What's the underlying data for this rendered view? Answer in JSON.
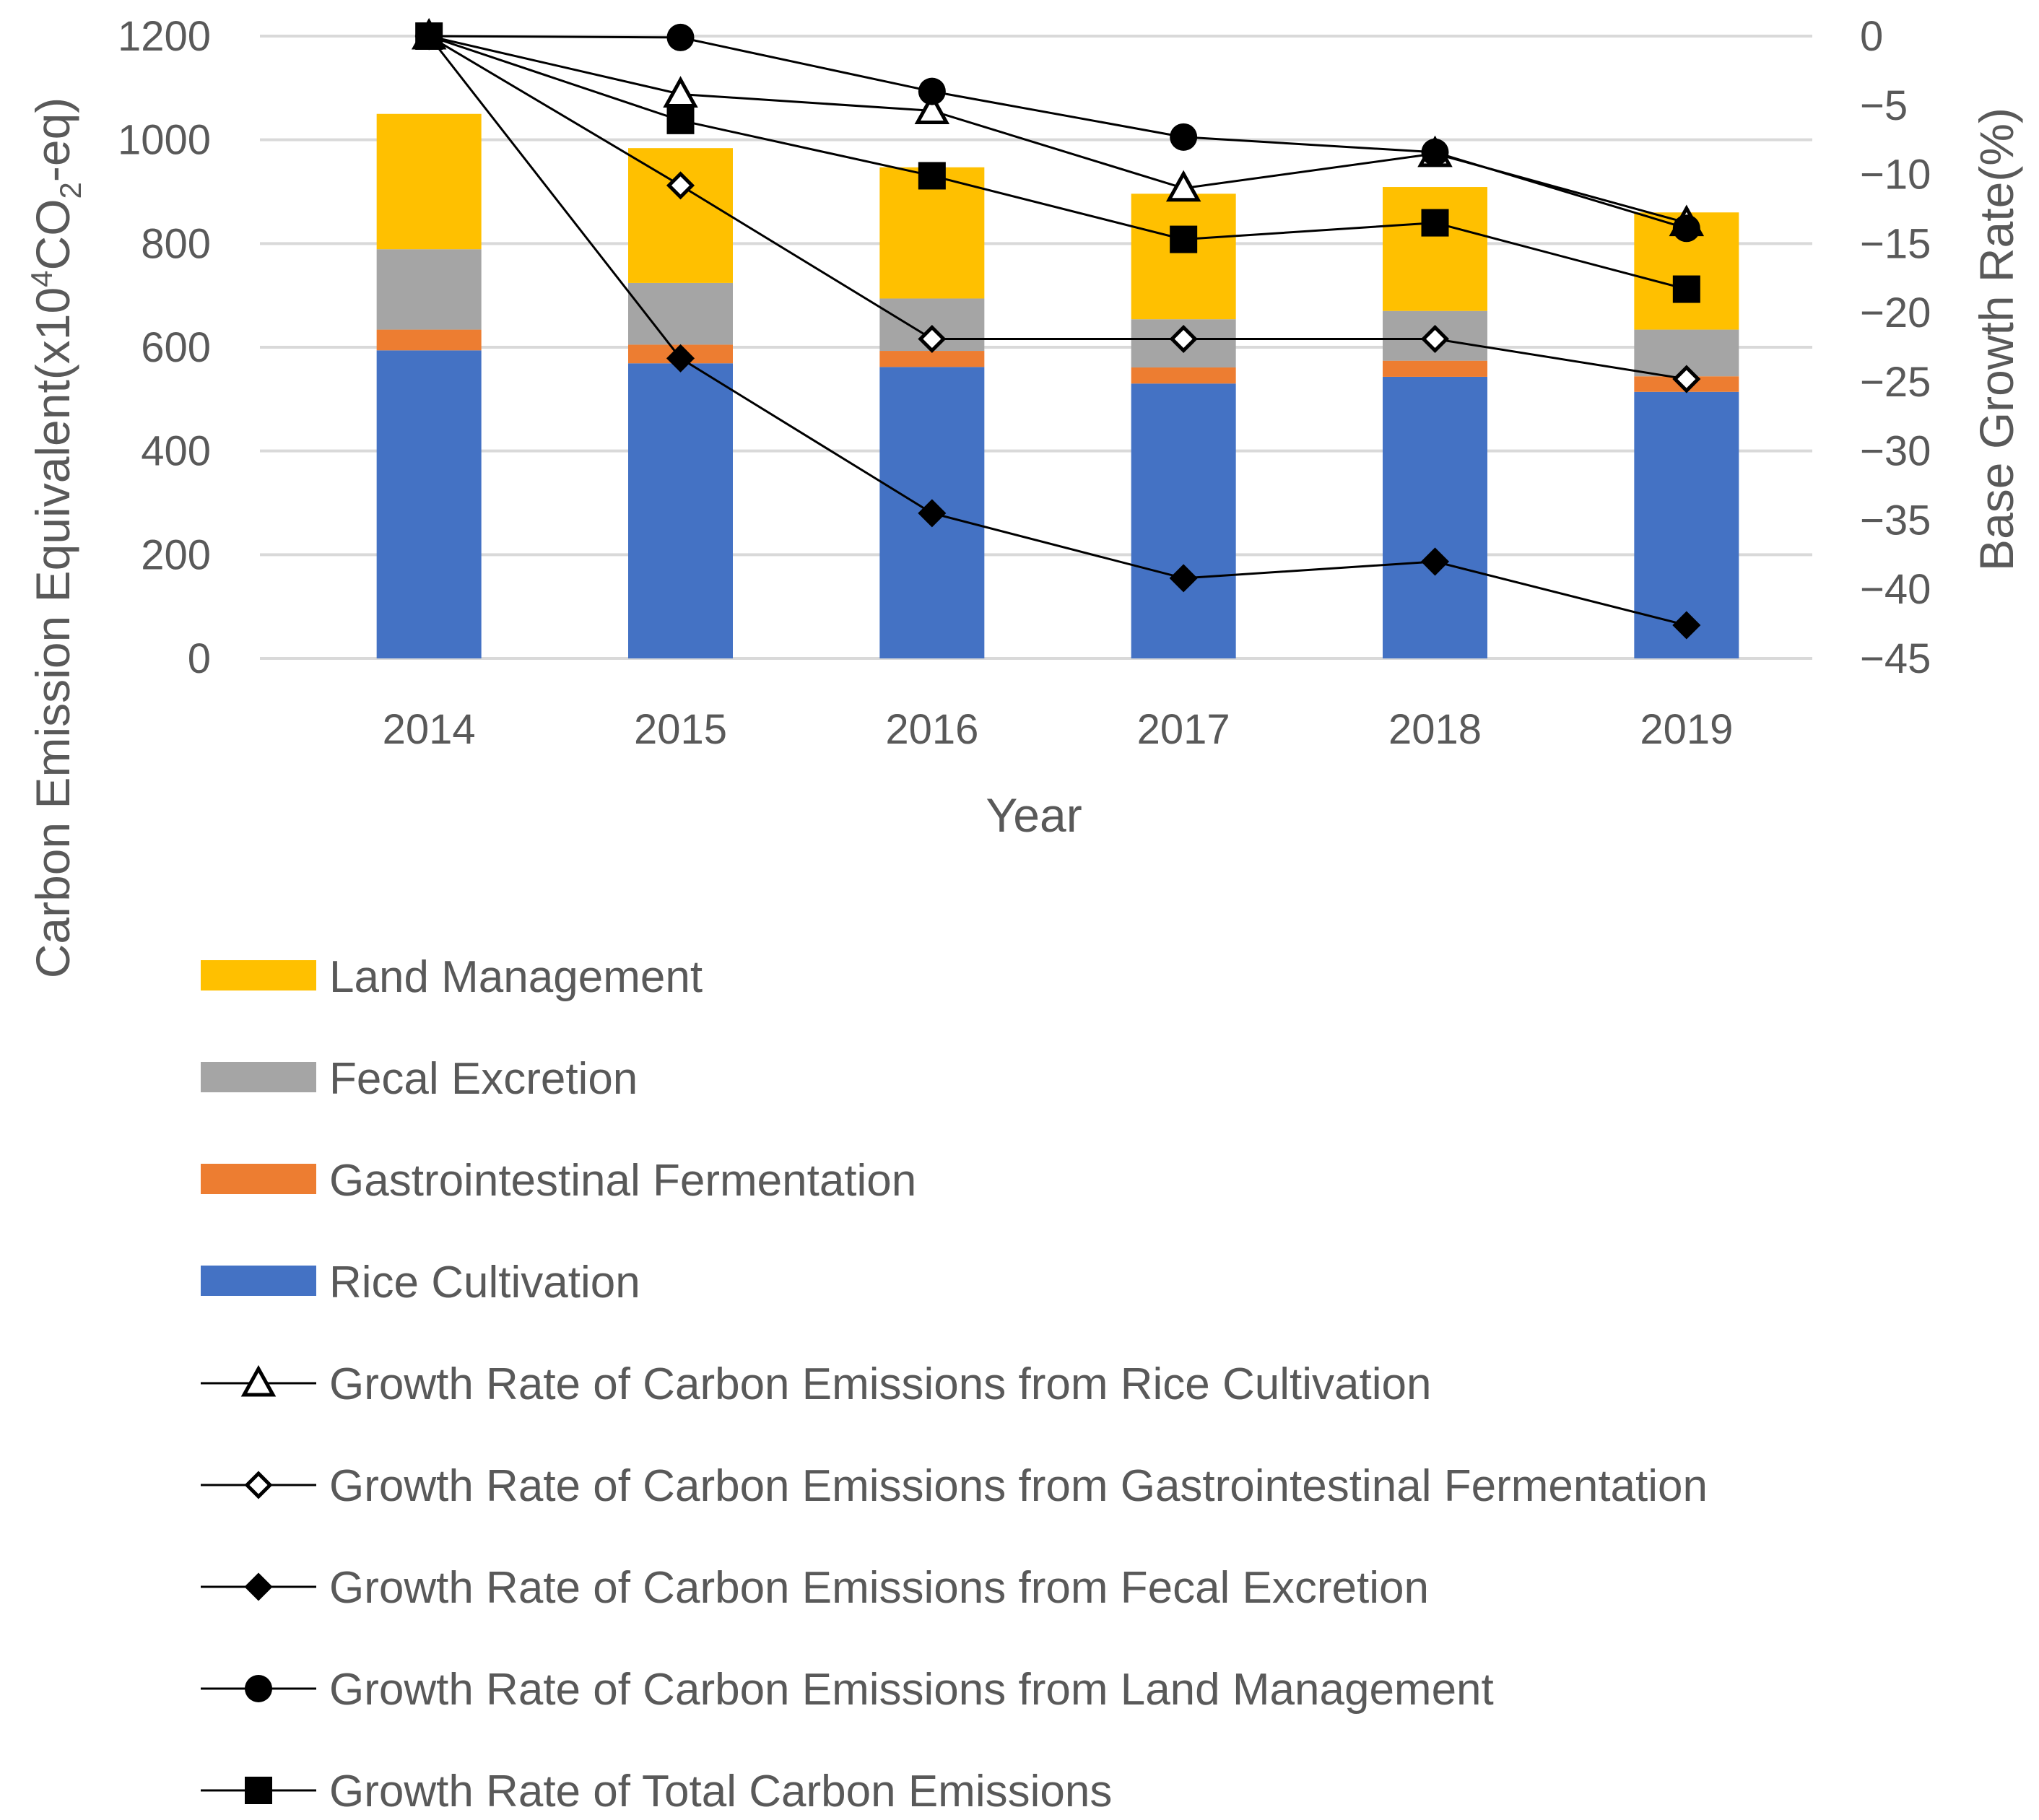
{
  "chart_data": {
    "type": "bar",
    "stacked": true,
    "categories": [
      "2014",
      "2015",
      "2016",
      "2017",
      "2018",
      "2019"
    ],
    "xlabel": "Year",
    "ylabel": "Carbon Emission Equivalent(x10⁴CO₂-eq)",
    "ylabel_parts": {
      "pre": "Carbon Emission Equivalent(x10",
      "sup": "4",
      "mid": "CO",
      "sub": "2",
      "post": "-eq)"
    },
    "y2label": "Base Growth Rate(%)",
    "ylim": [
      0,
      1200
    ],
    "y2lim": [
      -45,
      0
    ],
    "yticks": [
      "0",
      "200",
      "400",
      "600",
      "800",
      "1000",
      "1200"
    ],
    "y2ticks": [
      "0",
      "−5",
      "−10",
      "−15",
      "−20",
      "−25",
      "−30",
      "−35",
      "−40",
      "−45"
    ],
    "grid": true,
    "legend_position": "bottom",
    "bar_series": [
      {
        "name": "Rice Cultivation",
        "color": "#4472C4",
        "values": [
          594,
          569,
          562,
          530,
          543,
          514
        ]
      },
      {
        "name": "Gastrointestinal Fermentation",
        "color": "#ED7D31",
        "values": [
          40,
          36,
          31,
          31,
          31,
          30
        ]
      },
      {
        "name": "Fecal Excretion",
        "color": "#A5A5A5",
        "values": [
          155,
          119,
          101,
          93,
          96,
          90
        ]
      },
      {
        "name": "Land Management",
        "color": "#FFC000",
        "values": [
          261,
          260,
          253,
          242,
          239,
          226
        ]
      }
    ],
    "line_series": [
      {
        "name": "Growth Rate of Carbon Emissions from Rice Cultivation",
        "marker": "triangle-open",
        "values": [
          0,
          -4.2,
          -5.4,
          -11,
          -8.5,
          -13.5
        ]
      },
      {
        "name": "Growth Rate of Carbon Emissions from Gastrointestinal Fermentation",
        "marker": "diamond-open",
        "values": [
          0,
          -10.8,
          -21.9,
          -21.9,
          -21.9,
          -24.8
        ]
      },
      {
        "name": "Growth Rate of Carbon Emissions from Fecal Excretion",
        "marker": "diamond-filled",
        "values": [
          0,
          -23.3,
          -34.5,
          -39.2,
          -38,
          -42.6
        ]
      },
      {
        "name": "Growth Rate of Carbon Emissions from Land Management",
        "marker": "circle-filled",
        "values": [
          0,
          -0.1,
          -4,
          -7.3,
          -8.4,
          -13.9
        ]
      },
      {
        "name": "Growth Rate of Total Carbon Emissions",
        "marker": "square-filled",
        "values": [
          0,
          -6.1,
          -10.1,
          -14.7,
          -13.5,
          -18.3
        ]
      }
    ]
  }
}
